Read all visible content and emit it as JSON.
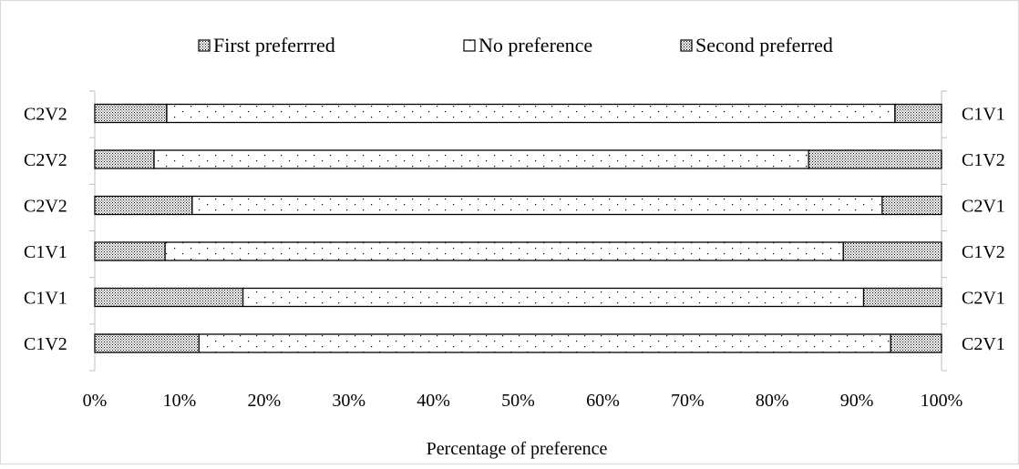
{
  "chart_data": {
    "type": "bar",
    "orientation": "horizontal",
    "stacked": "percent",
    "categories_left": [
      "C2V2",
      "C2V2",
      "C2V2",
      "C1V1",
      "C1V1",
      "C1V2"
    ],
    "categories_right": [
      "C1V1",
      "C1V2",
      "C2V1",
      "C1V2",
      "C2V1",
      "C2V1"
    ],
    "series": [
      {
        "name": "First preferrred",
        "values": [
          8.5,
          7.0,
          11.5,
          8.3,
          17.5,
          12.3
        ],
        "pattern": "dense-dots"
      },
      {
        "name": "No preference",
        "values": [
          86.0,
          77.3,
          81.5,
          80.1,
          73.3,
          81.7
        ],
        "pattern": "sparse-dots"
      },
      {
        "name": "Second preferred",
        "values": [
          5.5,
          15.7,
          7.0,
          11.6,
          9.2,
          6.0
        ],
        "pattern": "dense-dots"
      }
    ],
    "x_ticks": [
      "0%",
      "10%",
      "20%",
      "30%",
      "40%",
      "50%",
      "60%",
      "70%",
      "80%",
      "90%",
      "100%"
    ],
    "xlim": [
      0,
      100
    ],
    "xlabel": "Percentage of preference",
    "ylabel": "",
    "title": "",
    "legend_position": "top",
    "grid": false
  }
}
